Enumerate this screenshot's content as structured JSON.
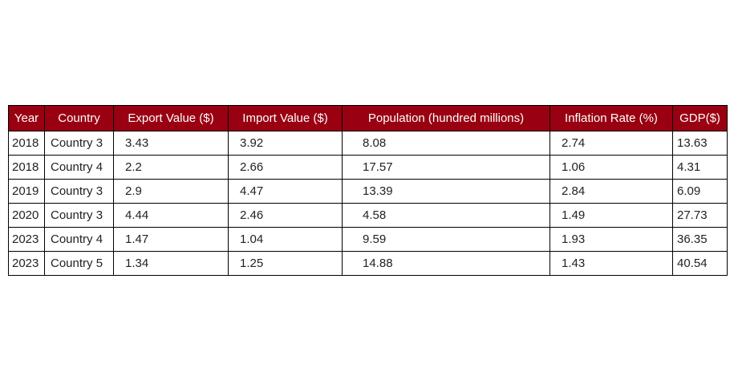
{
  "chart_data": {
    "type": "table",
    "columns": [
      "Year",
      "Country",
      "Export Value ($)",
      "Import Value ($)",
      "Population (hundred millions)",
      "Inflation Rate (%)",
      "GDP($)"
    ],
    "rows": [
      [
        "2018",
        "Country 3",
        "3.43",
        "3.92",
        "8.08",
        "2.74",
        "13.63"
      ],
      [
        "2018",
        "Country 4",
        "2.2",
        "2.66",
        "17.57",
        "1.06",
        "4.31"
      ],
      [
        "2019",
        "Country 3",
        "2.9",
        "4.47",
        "13.39",
        "2.84",
        "6.09"
      ],
      [
        "2020",
        "Country 3",
        "4.44",
        "2.46",
        "4.58",
        "1.49",
        "27.73"
      ],
      [
        "2023",
        "Country 4",
        "1.47",
        "1.04",
        "9.59",
        "1.93",
        "36.35"
      ],
      [
        "2023",
        "Country 5",
        "1.34",
        "1.25",
        "14.88",
        "1.43",
        "40.54"
      ]
    ],
    "colors": {
      "header_background": "#990011",
      "header_text": "#ffffff",
      "cell_text": "#222222",
      "border": "#000000"
    }
  }
}
